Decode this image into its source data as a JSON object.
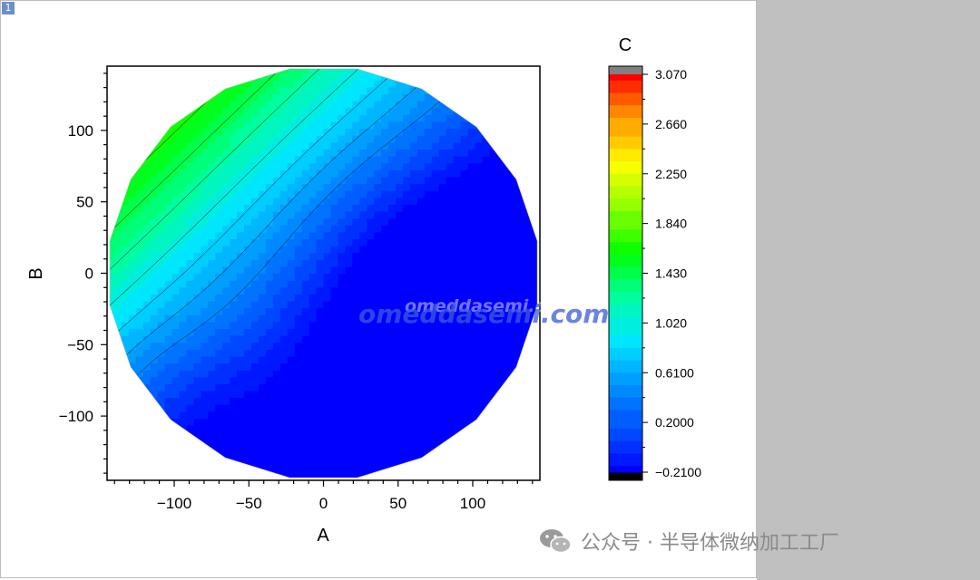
{
  "page": {
    "badge": "1"
  },
  "chart_data": {
    "type": "heatmap",
    "subtype": "contour",
    "xlabel": "A",
    "ylabel": "B",
    "colorbar_title": "C",
    "xlim": [
      -145,
      145
    ],
    "ylim": [
      -145,
      145
    ],
    "x_ticks": [
      -100,
      -50,
      0,
      50,
      100
    ],
    "y_ticks": [
      -100,
      -50,
      0,
      50,
      100
    ],
    "x_tick_labels": [
      "−100",
      "−50",
      "0",
      "50",
      "100"
    ],
    "y_tick_labels": [
      "−100",
      "−50",
      "0",
      "50",
      "100"
    ],
    "wafer_radius": 145,
    "c_range": [
      -0.21,
      3.07
    ],
    "colorbar_ticks": [
      3.07,
      2.66,
      2.25,
      1.84,
      1.43,
      1.02,
      0.61,
      0.2,
      -0.21
    ],
    "colorbar_tick_labels": [
      "3.070",
      "2.660",
      "2.250",
      "1.840",
      "1.430",
      "1.020",
      "0.6100",
      "0.2000",
      "−0.2100"
    ],
    "colormap": [
      "#0000ff",
      "#0050ff",
      "#0096ff",
      "#00e6ff",
      "#00ff96",
      "#00ff00",
      "#96ff00",
      "#ffff00",
      "#ff9600",
      "#ff0000"
    ],
    "over_color": "#808080",
    "under_color": "#000000",
    "contour_levels": [
      0.4,
      0.6,
      0.8,
      1.0,
      1.2,
      1.4,
      1.6,
      1.8,
      2.0,
      2.2,
      2.5
    ],
    "grid": false,
    "legend": "colorbar-right"
  },
  "watermark": {
    "text": "omeddasemi.com",
    "footer": "公众号 · 半导体微纳加工工厂"
  }
}
